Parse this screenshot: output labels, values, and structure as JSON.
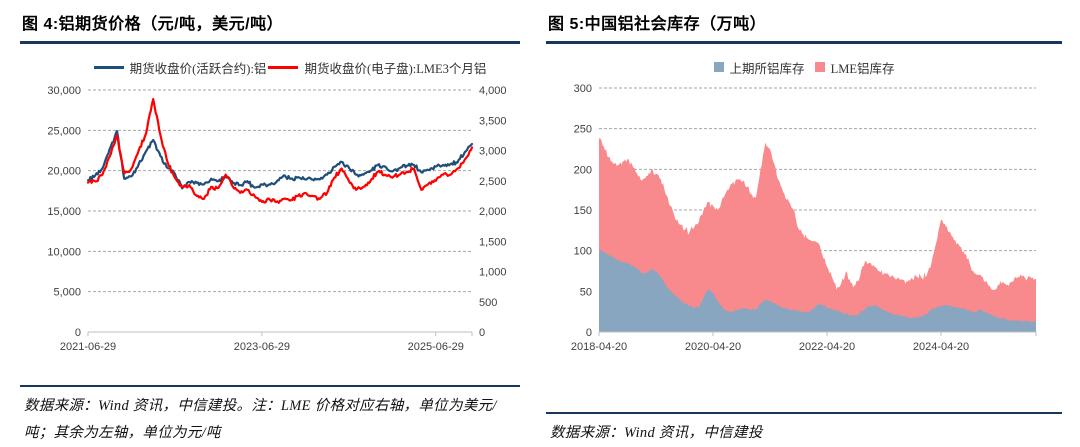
{
  "colors": {
    "accent_rule": "#17375D",
    "axis_text": "#404040",
    "grid": "#A6A6A6",
    "axis_line": "#BFBFBF"
  },
  "figure4": {
    "title": "图 4:铝期货价格（元/吨，美元/吨）",
    "legend": [
      {
        "label": "期货收盘价(活跃合约):铝",
        "color": "#1F4E79"
      },
      {
        "label": "期货收盘价(电子盘):LME3个月铝",
        "color": "#FF0000"
      }
    ],
    "source_note": "数据来源：Wind 资讯，中信建投。注：LME 价格对应右轴，单位为美元/吨；其余为左轴，单位为元/吨"
  },
  "figure5": {
    "title": "图 5:中国铝社会库存（万吨）",
    "legend": [
      {
        "label": "上期所铝库存",
        "color": "#89A6C0"
      },
      {
        "label": "LME铝库存",
        "color": "#F8898C"
      }
    ],
    "source_note": "数据来源：Wind 资讯，中信建投"
  },
  "chart_data": [
    {
      "type": "line",
      "title": "图 4:铝期货价格（元/吨，美元/吨）",
      "x_start": "2021-06-29",
      "x_interval": "monthly",
      "x_tick_labels": [
        "2021-06-29",
        "2023-06-29",
        "2025-06-29"
      ],
      "x_tick_indices": [
        0,
        24,
        48
      ],
      "left_axis": {
        "min": 0,
        "max": 30000,
        "tick_step": 5000,
        "tick_labels": [
          "30,000",
          "25,000",
          "20,000",
          "15,000",
          "10,000",
          "5,000",
          "0"
        ]
      },
      "right_axis": {
        "min": 0,
        "max": 4000,
        "tick_step": 500,
        "tick_labels": [
          "4,000",
          "3,500",
          "3,000",
          "2,500",
          "2,000",
          "1,500",
          "1,000",
          "500",
          "0"
        ]
      },
      "grid": true,
      "legend_position": "top",
      "series": [
        {
          "name": "期货收盘价(活跃合约):铝",
          "axis": "left",
          "color": "#1F4E79",
          "values": [
            18800,
            19400,
            20300,
            22700,
            24900,
            19000,
            19300,
            20800,
            22400,
            23800,
            21800,
            20300,
            19600,
            17800,
            18600,
            18500,
            18300,
            19000,
            18700,
            19300,
            18500,
            18200,
            18700,
            17900,
            18300,
            18300,
            18600,
            19400,
            19000,
            19200,
            18900,
            18900,
            18900,
            19500,
            20500,
            21100,
            20400,
            19500,
            19500,
            20000,
            20700,
            20500,
            19900,
            20300,
            20600,
            20700,
            19800,
            20100,
            20500,
            20700,
            20800,
            21000,
            22300,
            23300
          ]
        },
        {
          "name": "期货收盘价(电子盘):LME3个月铝",
          "axis": "right",
          "color": "#FF0000",
          "values": [
            2470,
            2490,
            2600,
            2900,
            3250,
            2620,
            2700,
            3000,
            3280,
            3850,
            3250,
            2800,
            2550,
            2400,
            2430,
            2250,
            2200,
            2400,
            2380,
            2600,
            2400,
            2300,
            2350,
            2250,
            2150,
            2200,
            2150,
            2200,
            2180,
            2250,
            2300,
            2250,
            2200,
            2300,
            2550,
            2700,
            2500,
            2350,
            2400,
            2500,
            2650,
            2600,
            2550,
            2600,
            2650,
            2700,
            2350,
            2450,
            2500,
            2600,
            2600,
            2700,
            2850,
            3050
          ]
        }
      ]
    },
    {
      "type": "area",
      "stacked": true,
      "title": "图 5:中国铝社会库存（万吨）",
      "x_start": "2018-04-20",
      "x_interval": "monthly",
      "x_tick_labels": [
        "2018-04-20",
        "2020-04-20",
        "2022-04-20",
        "2024-04-20"
      ],
      "x_tick_indices": [
        0,
        24,
        48,
        72
      ],
      "y_axis": {
        "min": 0,
        "max": 300,
        "tick_step": 50,
        "tick_labels": [
          "300",
          "250",
          "200",
          "150",
          "100",
          "50",
          "0"
        ]
      },
      "grid": true,
      "legend_position": "top",
      "series": [
        {
          "name": "上期所铝库存",
          "color": "#89A6C0",
          "values": [
            100,
            98,
            95,
            92,
            88,
            86,
            85,
            82,
            78,
            73,
            72,
            78,
            75,
            68,
            58,
            50,
            45,
            40,
            35,
            32,
            30,
            30,
            42,
            53,
            48,
            38,
            30,
            26,
            25,
            27,
            29,
            28,
            27,
            28,
            35,
            40,
            38,
            35,
            32,
            30,
            28,
            27,
            26,
            25,
            24,
            28,
            34,
            33,
            30,
            28,
            26,
            24,
            23,
            21,
            20,
            24,
            28,
            32,
            33,
            30,
            27,
            24,
            22,
            21,
            20,
            18,
            17,
            18,
            19,
            22,
            28,
            30,
            32,
            33,
            32,
            31,
            30,
            28,
            26,
            24,
            28,
            25,
            22,
            20,
            18,
            17,
            15,
            14,
            14,
            13,
            13,
            12,
            12
          ]
        },
        {
          "name": "LME铝库存",
          "color": "#F8898C",
          "values": [
            138,
            130,
            120,
            115,
            117,
            124,
            128,
            123,
            117,
            113,
            120,
            122,
            120,
            120,
            112,
            105,
            95,
            92,
            90,
            90,
            98,
            105,
            108,
            107,
            107,
            112,
            135,
            149,
            157,
            161,
            156,
            150,
            143,
            137,
            165,
            193,
            187,
            170,
            153,
            140,
            132,
            123,
            101,
            95,
            91,
            84,
            76,
            62,
            50,
            40,
            26,
            36,
            52,
            39,
            38,
            46,
            59,
            53,
            47,
            45,
            45,
            46,
            46,
            46,
            44,
            44,
            48,
            50,
            47,
            48,
            57,
            80,
            106,
            97,
            90,
            82,
            75,
            67,
            59,
            48,
            42,
            38,
            35,
            32,
            40,
            45,
            43,
            48,
            52,
            55,
            50,
            54,
            53
          ]
        }
      ]
    }
  ]
}
